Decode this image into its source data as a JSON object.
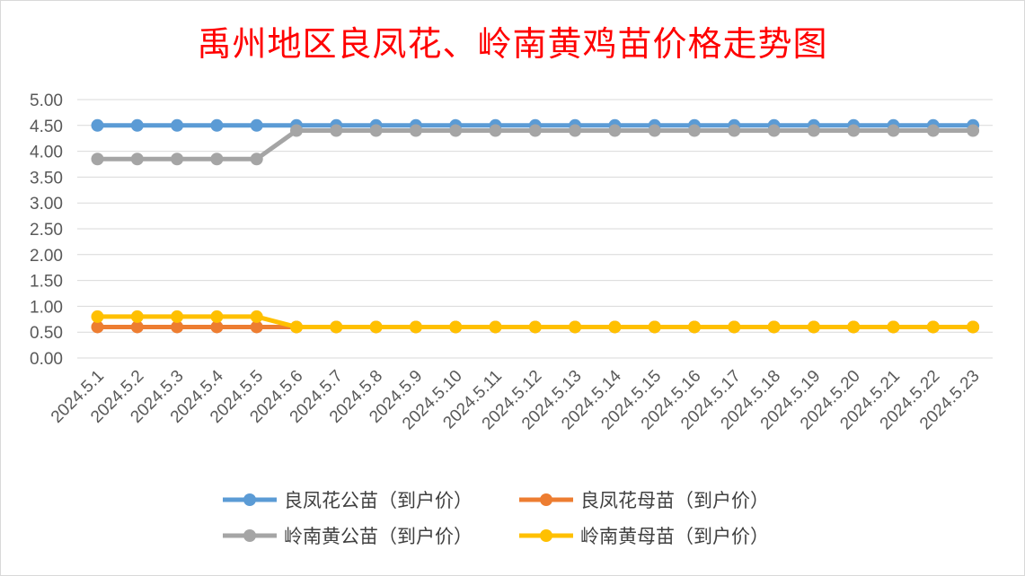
{
  "chart_data": {
    "type": "line",
    "title": "禹州地区良凤花、岭南黄鸡苗价格走势图",
    "xlabel": "",
    "ylabel": "",
    "ylim": [
      0,
      5
    ],
    "y_ticks": [
      "0.00",
      "0.50",
      "1.00",
      "1.50",
      "2.00",
      "2.50",
      "3.00",
      "3.50",
      "4.00",
      "4.50",
      "5.00"
    ],
    "grid": true,
    "legend_position": "bottom",
    "categories": [
      "2024.5.1",
      "2024.5.2",
      "2024.5.3",
      "2024.5.4",
      "2024.5.5",
      "2024.5.6",
      "2024.5.7",
      "2024.5.8",
      "2024.5.9",
      "2024.5.10",
      "2024.5.11",
      "2024.5.12",
      "2024.5.13",
      "2024.5.14",
      "2024.5.15",
      "2024.5.16",
      "2024.5.17",
      "2024.5.18",
      "2024.5.19",
      "2024.5.20",
      "2024.5.21",
      "2024.5.22",
      "2024.5.23"
    ],
    "series": [
      {
        "name": "良凤花公苗（到户价）",
        "color": "#5b9bd5",
        "values": [
          4.5,
          4.5,
          4.5,
          4.5,
          4.5,
          4.5,
          4.5,
          4.5,
          4.5,
          4.5,
          4.5,
          4.5,
          4.5,
          4.5,
          4.5,
          4.5,
          4.5,
          4.5,
          4.5,
          4.5,
          4.5,
          4.5,
          4.5
        ]
      },
      {
        "name": "良凤花母苗（到户价）",
        "color": "#ed7d31",
        "values": [
          0.6,
          0.6,
          0.6,
          0.6,
          0.6,
          0.6,
          0.6,
          0.6,
          0.6,
          0.6,
          0.6,
          0.6,
          0.6,
          0.6,
          0.6,
          0.6,
          0.6,
          0.6,
          0.6,
          0.6,
          0.6,
          0.6,
          0.6
        ]
      },
      {
        "name": "岭南黄公苗（到户价）",
        "color": "#a5a5a5",
        "values": [
          3.85,
          3.85,
          3.85,
          3.85,
          3.85,
          4.4,
          4.4,
          4.4,
          4.4,
          4.4,
          4.4,
          4.4,
          4.4,
          4.4,
          4.4,
          4.4,
          4.4,
          4.4,
          4.4,
          4.4,
          4.4,
          4.4,
          4.4
        ]
      },
      {
        "name": "岭南黄母苗（到户价）",
        "color": "#ffc000",
        "values": [
          0.8,
          0.8,
          0.8,
          0.8,
          0.8,
          0.6,
          0.6,
          0.6,
          0.6,
          0.6,
          0.6,
          0.6,
          0.6,
          0.6,
          0.6,
          0.6,
          0.6,
          0.6,
          0.6,
          0.6,
          0.6,
          0.6,
          0.6
        ]
      }
    ]
  }
}
